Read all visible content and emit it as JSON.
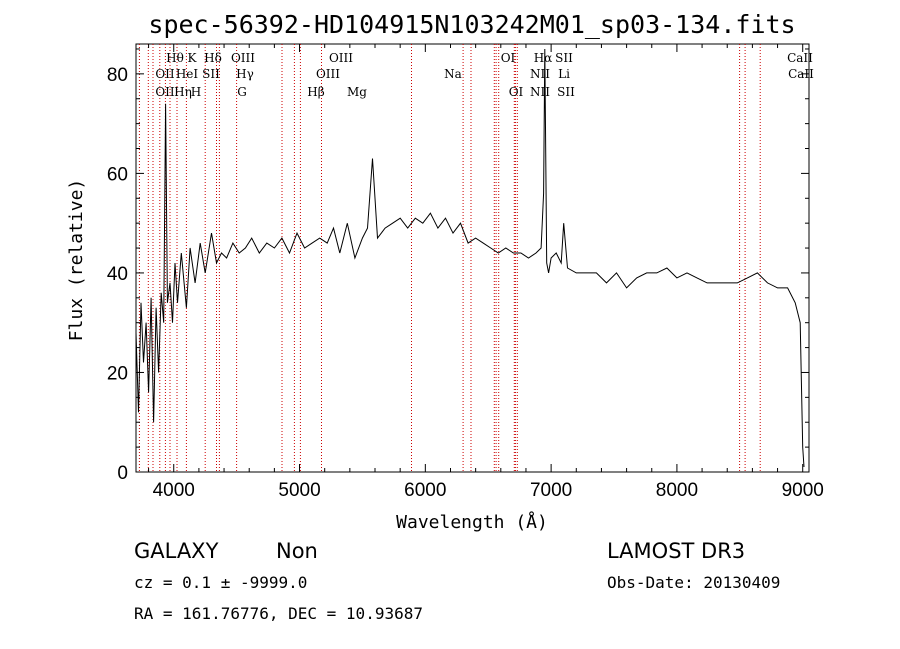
{
  "chart_data": {
    "type": "line",
    "title": "spec-56392-HD104915N103242M01_sp03-134.fits",
    "xlabel": "Wavelength (Å)",
    "ylabel": "Flux (relative)",
    "xlim": [
      3700,
      9050
    ],
    "ylim": [
      0,
      86
    ],
    "xticks": [
      4000,
      5000,
      6000,
      7000,
      8000,
      9000
    ],
    "yticks": [
      0,
      20,
      40,
      60,
      80
    ],
    "series": [
      {
        "color": "#000000",
        "x": [
          3700,
          3720,
          3740,
          3760,
          3780,
          3800,
          3820,
          3840,
          3860,
          3880,
          3900,
          3920,
          3935,
          3950,
          3970,
          3990,
          4010,
          4030,
          4060,
          4101,
          4130,
          4170,
          4210,
          4250,
          4300,
          4340,
          4380,
          4420,
          4470,
          4520,
          4570,
          4620,
          4680,
          4740,
          4800,
          4860,
          4920,
          4980,
          5040,
          5100,
          5160,
          5220,
          5270,
          5320,
          5380,
          5440,
          5500,
          5540,
          5580,
          5620,
          5680,
          5740,
          5800,
          5860,
          5920,
          5980,
          6040,
          6100,
          6160,
          6220,
          6280,
          6340,
          6400,
          6460,
          6520,
          6580,
          6640,
          6700,
          6760,
          6820,
          6880,
          6920,
          6940,
          6950,
          6965,
          6980,
          7000,
          7040,
          7080,
          7100,
          7130,
          7200,
          7280,
          7360,
          7440,
          7520,
          7600,
          7680,
          7760,
          7840,
          7920,
          8000,
          8080,
          8160,
          8240,
          8320,
          8400,
          8480,
          8560,
          8640,
          8720,
          8800,
          8880,
          8940,
          8980,
          9000,
          9010
        ],
        "y": [
          28,
          12,
          34,
          22,
          30,
          16,
          35,
          10,
          33,
          20,
          36,
          30,
          74,
          34,
          38,
          30,
          42,
          34,
          44,
          33,
          45,
          38,
          46,
          40,
          48,
          42,
          44,
          43,
          46,
          44,
          45,
          47,
          44,
          46,
          45,
          47,
          44,
          48,
          45,
          46,
          47,
          46,
          49,
          44,
          50,
          43,
          47,
          49,
          63,
          47,
          49,
          50,
          51,
          49,
          51,
          50,
          52,
          49,
          51,
          48,
          50,
          46,
          47,
          46,
          45,
          44,
          45,
          44,
          44,
          43,
          44,
          45,
          56,
          85,
          42,
          40,
          43,
          44,
          42,
          50,
          41,
          40,
          40,
          40,
          38,
          40,
          37,
          39,
          40,
          40,
          41,
          39,
          40,
          39,
          38,
          38,
          38,
          38,
          39,
          40,
          38,
          37,
          37,
          34,
          30,
          5,
          1
        ]
      }
    ],
    "lines_top": [
      "Hθ",
      "K",
      "Hδ",
      "OIII",
      "OIII",
      "OI",
      "Hα",
      "SII",
      "CaII"
    ],
    "lines_mid": [
      "OII",
      "HeI",
      "SII",
      "Hγ",
      "OIII",
      "Na",
      "NII",
      "Li",
      "CaII"
    ],
    "lines_bot": [
      "OII",
      "Hη",
      "H",
      "G",
      "Hβ",
      "Mg",
      "OI",
      "NII",
      "SII"
    ],
    "line_marks": [
      3727,
      3798,
      3835,
      3889,
      3934,
      3970,
      4026,
      4101,
      4250,
      4340,
      4363,
      4500,
      4861,
      4959,
      5007,
      5175,
      5890,
      6300,
      6363,
      6548,
      6563,
      6583,
      6707,
      6716,
      6731,
      8498,
      8542,
      8662
    ],
    "marker_color": "#cc0000"
  },
  "info": {
    "class": "GALAXY",
    "subclass": "Non",
    "survey": "LAMOST DR3",
    "cz": "cz = 0.1 ± -9999.0",
    "obsdate": "Obs-Date: 20130409",
    "radec": "RA = 161.76776, DEC =  10.93687"
  }
}
